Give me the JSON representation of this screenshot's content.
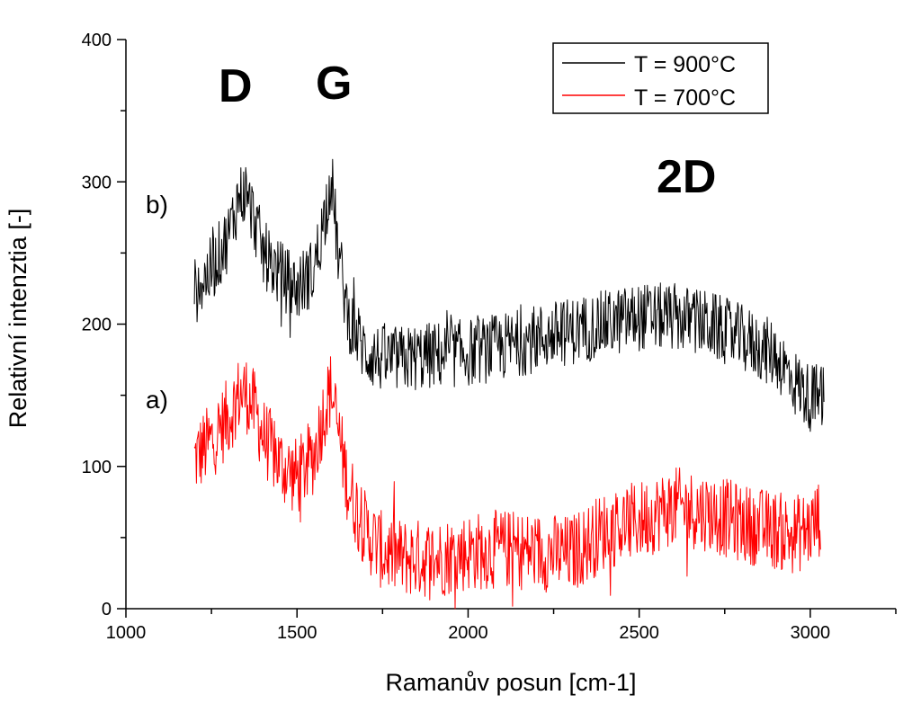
{
  "chart_data": {
    "type": "line",
    "title": "",
    "xlabel": "Ramanův posun [cm-1]",
    "ylabel": "Relativní intenztia [-]",
    "xlim": [
      1000,
      3250
    ],
    "ylim": [
      0,
      400
    ],
    "x_ticks": [
      1000,
      1500,
      2000,
      2500,
      3000
    ],
    "y_ticks": [
      0,
      100,
      200,
      300,
      400
    ],
    "grid": false,
    "legend_position": "top-right",
    "series": [
      {
        "name": "T = 900°C",
        "color": "#000000",
        "curve_label": "b)",
        "x": [
          1200,
          1250,
          1300,
          1330,
          1350,
          1380,
          1400,
          1450,
          1500,
          1550,
          1580,
          1600,
          1620,
          1650,
          1700,
          1750,
          1800,
          1900,
          2000,
          2100,
          2200,
          2300,
          2400,
          2500,
          2600,
          2700,
          2800,
          2900,
          2950,
          3000,
          3040
        ],
        "y": [
          222,
          238,
          262,
          290,
          292,
          270,
          250,
          235,
          225,
          238,
          275,
          305,
          250,
          205,
          180,
          175,
          175,
          178,
          180,
          184,
          190,
          195,
          200,
          205,
          205,
          200,
          190,
          178,
          160,
          148,
          150
        ]
      },
      {
        "name": "T = 700°C",
        "color": "#ff0000",
        "curve_label": "a)",
        "x": [
          1200,
          1250,
          1300,
          1330,
          1350,
          1380,
          1400,
          1450,
          1500,
          1550,
          1580,
          1600,
          1620,
          1650,
          1700,
          1750,
          1800,
          1900,
          2000,
          2100,
          2200,
          2300,
          2400,
          2500,
          2600,
          2700,
          2800,
          2900,
          2950,
          3000,
          3030
        ],
        "y": [
          105,
          118,
          135,
          150,
          152,
          138,
          122,
          102,
          92,
          108,
          140,
          155,
          125,
          85,
          55,
          40,
          36,
          35,
          40,
          42,
          40,
          38,
          55,
          62,
          72,
          68,
          60,
          55,
          52,
          56,
          65
        ]
      }
    ],
    "annotations": [
      {
        "text": "D",
        "x": 1330,
        "y": 370
      },
      {
        "text": "G",
        "x": 1600,
        "y": 370
      },
      {
        "text": "2D",
        "x": 2650,
        "y": 300
      }
    ]
  }
}
